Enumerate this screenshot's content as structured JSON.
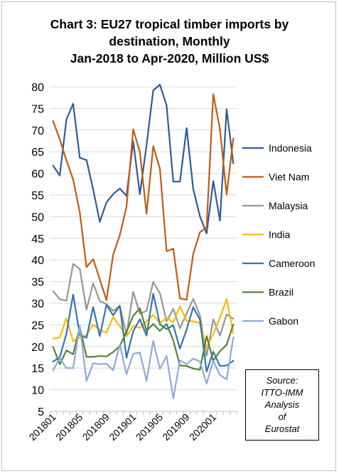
{
  "chart_data": {
    "type": "line",
    "title_lines": [
      "Chart 3: EU27 tropical timber imports by",
      "destination, Monthly",
      "Jan-2018 to Apr-2020, Million US$"
    ],
    "x": [
      "201801",
      "201802",
      "201803",
      "201804",
      "201805",
      "201806",
      "201807",
      "201808",
      "201809",
      "201810",
      "201811",
      "201812",
      "201901",
      "201902",
      "201903",
      "201904",
      "201905",
      "201906",
      "201907",
      "201908",
      "201909",
      "201910",
      "201911",
      "201912",
      "202001",
      "202002",
      "202003",
      "202004"
    ],
    "x_tick_labels": [
      "201801",
      "201805",
      "201809",
      "201901",
      "201905",
      "201909",
      "202001"
    ],
    "ylim": [
      5,
      80
    ],
    "y_ticks": [
      5,
      10,
      15,
      20,
      25,
      30,
      35,
      40,
      45,
      50,
      55,
      60,
      65,
      70,
      75,
      80
    ],
    "grid": true,
    "legend_position": "right",
    "series": [
      {
        "name": "Indonesia",
        "color": "#2E5B9A",
        "values": [
          61.8,
          59.5,
          72.5,
          76.1,
          63.6,
          63.1,
          56.3,
          48.8,
          53.3,
          55.2,
          56.5,
          54.8,
          67.4,
          55.2,
          66.5,
          79.2,
          80.5,
          75.7,
          58.1,
          58.1,
          70.5,
          56.4,
          50.1,
          46.1,
          58.2,
          49.1,
          74.8,
          62.3
        ]
      },
      {
        "name": "Viet Nam",
        "color": "#C55A11",
        "values": [
          72.1,
          67.9,
          63.0,
          58.6,
          51.0,
          38.3,
          40.2,
          35.5,
          30.7,
          41.2,
          45.7,
          52.3,
          70.2,
          64.9,
          50.7,
          66.3,
          61.1,
          42.0,
          42.6,
          31.1,
          30.8,
          41.4,
          46.4,
          47.5,
          78.3,
          70.2,
          55.1,
          68.1
        ]
      },
      {
        "name": "Malaysia",
        "color": "#969696",
        "values": [
          32.8,
          30.9,
          30.6,
          39.1,
          37.9,
          28.5,
          34.6,
          30.5,
          29.8,
          28.2,
          29.4,
          22.7,
          32.6,
          27.6,
          28.2,
          34.9,
          32.3,
          25.8,
          28.7,
          24.2,
          27.6,
          31.0,
          27.2,
          17.8,
          26.3,
          22.5,
          27.4,
          26.4
        ]
      },
      {
        "name": "India",
        "color": "#FFB900",
        "values": [
          21.8,
          22.1,
          26.5,
          21.2,
          22.1,
          22.6,
          25.1,
          23.8,
          23.2,
          26.8,
          24.7,
          22.3,
          24.7,
          24.3,
          25.8,
          27.3,
          25.4,
          26.6,
          25.6,
          29.3,
          25.9,
          25.8,
          25.4,
          19.7,
          22.9,
          26.6,
          31.0,
          23.0
        ]
      },
      {
        "name": "Cameroon",
        "color": "#2E75B6",
        "values": [
          16.5,
          17.5,
          23.0,
          32.0,
          22.6,
          22.0,
          29.1,
          22.4,
          29.6,
          27.2,
          29.4,
          17.4,
          23.5,
          26.3,
          22.5,
          32.2,
          25.1,
          24.0,
          24.9,
          19.5,
          23.9,
          29.1,
          26.2,
          14.2,
          18.8,
          15.5,
          15.6,
          16.7
        ]
      },
      {
        "name": "Brazil",
        "color": "#548235",
        "values": [
          19.9,
          15.9,
          19.1,
          18.2,
          24.5,
          17.6,
          17.6,
          17.8,
          17.7,
          18.7,
          20.1,
          23.4,
          27.1,
          28.8,
          23.6,
          25.2,
          23.6,
          25.2,
          21.4,
          15.6,
          15.5,
          14.9,
          14.6,
          22.4,
          16.7,
          18.9,
          20.4,
          25.1
        ]
      },
      {
        "name": "Gabon",
        "color": "#8EA9DB",
        "values": [
          14.5,
          17.3,
          15.0,
          15.0,
          24.8,
          12.0,
          16.1,
          15.9,
          16.0,
          14.5,
          20.4,
          13.6,
          18.3,
          18.6,
          12.0,
          21.3,
          14.8,
          17.8,
          8.0,
          16.8,
          15.9,
          17.2,
          16.5,
          11.4,
          16.7,
          13.4,
          12.4,
          22.1
        ]
      }
    ]
  },
  "source_lines": [
    "Source:",
    "ITTO-IMM",
    "Analysis",
    "of",
    "Eurostat"
  ]
}
